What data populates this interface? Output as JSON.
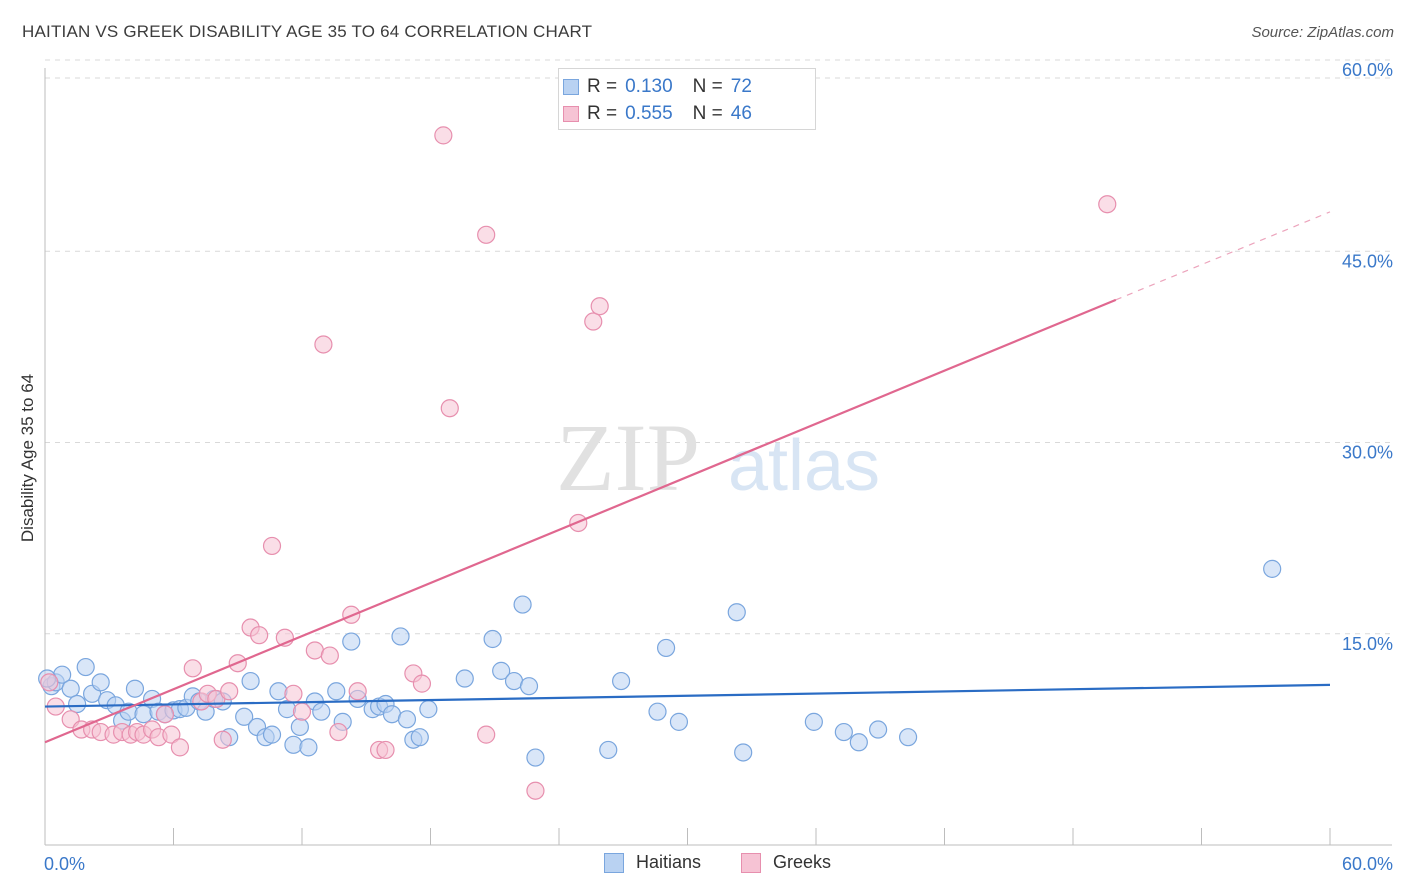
{
  "header": {
    "title": "HAITIAN VS GREEK DISABILITY AGE 35 TO 64 CORRELATION CHART",
    "source": "Source: ZipAtlas.com"
  },
  "watermark": {
    "zip": "ZIP",
    "atlas": "atlas"
  },
  "colors": {
    "haitian_fill": "#b9d2f2",
    "haitian_stroke": "#7aa6de",
    "haitian_line": "#2a6cc4",
    "greek_fill": "#f6c3d4",
    "greek_stroke": "#e78fae",
    "greek_line": "#e0678f",
    "tick_label": "#3a78c9",
    "grid": "#d9d9d9"
  },
  "legend_top": {
    "rows": [
      {
        "swatch": "haitian",
        "r_label": "R =",
        "r_value": "0.130",
        "n_label": "N =",
        "n_value": "72"
      },
      {
        "swatch": "greek",
        "r_label": "R =",
        "r_value": "0.555",
        "n_label": "N =",
        "n_value": "46"
      }
    ]
  },
  "legend_bottom": [
    {
      "swatch": "haitian",
      "label": "Haitians"
    },
    {
      "swatch": "greek",
      "label": "Greeks"
    }
  ],
  "chart_data": {
    "type": "scatter",
    "title": "HAITIAN VS GREEK DISABILITY AGE 35 TO 64 CORRELATION CHART",
    "xlabel": "",
    "ylabel": "Disability Age 35 to 64",
    "xlim": [
      0,
      60
    ],
    "ylim": [
      0,
      60
    ],
    "x_tick_labels": [
      {
        "value": 0,
        "label": "0.0%"
      },
      {
        "value": 60,
        "label": "60.0%"
      }
    ],
    "y_tick_labels": [
      {
        "value": 15,
        "label": "15.0%"
      },
      {
        "value": 30,
        "label": "30.0%"
      },
      {
        "value": 45,
        "label": "45.0%"
      },
      {
        "value": 60,
        "label": "60.0%"
      }
    ],
    "grid": "horizontal dashed",
    "legend_placement": "top-center",
    "series": [
      {
        "name": "Haitians",
        "r": 0.13,
        "n": 72,
        "trend": {
          "x": [
            0,
            60
          ],
          "y": [
            10.7,
            12.4
          ]
        },
        "points": [
          [
            0.3,
            12.3
          ],
          [
            0.5,
            12.6
          ],
          [
            0.8,
            13.2
          ],
          [
            1.2,
            12.1
          ],
          [
            1.5,
            10.9
          ],
          [
            1.9,
            13.8
          ],
          [
            2.2,
            11.7
          ],
          [
            2.6,
            12.6
          ],
          [
            2.9,
            11.2
          ],
          [
            3.3,
            10.8
          ],
          [
            3.6,
            9.6
          ],
          [
            3.9,
            10.3
          ],
          [
            4.2,
            12.1
          ],
          [
            4.6,
            10.1
          ],
          [
            5.0,
            11.3
          ],
          [
            5.3,
            10.3
          ],
          [
            5.6,
            10.1
          ],
          [
            6.0,
            10.4
          ],
          [
            6.3,
            10.5
          ],
          [
            6.6,
            10.6
          ],
          [
            6.9,
            11.5
          ],
          [
            7.2,
            11.1
          ],
          [
            7.5,
            10.3
          ],
          [
            7.9,
            11.3
          ],
          [
            8.3,
            11.1
          ],
          [
            8.6,
            8.3
          ],
          [
            9.3,
            9.9
          ],
          [
            9.6,
            12.7
          ],
          [
            9.9,
            9.1
          ],
          [
            10.3,
            8.3
          ],
          [
            10.6,
            8.5
          ],
          [
            10.9,
            11.9
          ],
          [
            11.3,
            10.5
          ],
          [
            11.6,
            7.7
          ],
          [
            11.9,
            9.1
          ],
          [
            12.3,
            7.5
          ],
          [
            12.6,
            11.1
          ],
          [
            12.9,
            10.3
          ],
          [
            13.6,
            11.9
          ],
          [
            13.9,
            9.5
          ],
          [
            14.3,
            15.8
          ],
          [
            14.6,
            11.3
          ],
          [
            15.3,
            10.5
          ],
          [
            15.6,
            10.7
          ],
          [
            15.9,
            10.9
          ],
          [
            16.2,
            10.1
          ],
          [
            16.6,
            16.2
          ],
          [
            16.9,
            9.7
          ],
          [
            17.2,
            8.1
          ],
          [
            17.5,
            8.3
          ],
          [
            17.9,
            10.5
          ],
          [
            19.6,
            12.9
          ],
          [
            20.9,
            16.0
          ],
          [
            21.3,
            13.5
          ],
          [
            21.9,
            12.7
          ],
          [
            22.3,
            18.7
          ],
          [
            22.6,
            12.3
          ],
          [
            22.9,
            6.7
          ],
          [
            26.3,
            7.3
          ],
          [
            26.9,
            12.7
          ],
          [
            28.6,
            10.3
          ],
          [
            29.0,
            15.3
          ],
          [
            29.6,
            9.5
          ],
          [
            32.6,
            7.1
          ],
          [
            32.3,
            18.1
          ],
          [
            35.9,
            9.5
          ],
          [
            37.3,
            8.7
          ],
          [
            38.0,
            7.9
          ],
          [
            38.9,
            8.9
          ],
          [
            40.3,
            8.3
          ],
          [
            57.3,
            21.5
          ],
          [
            0.1,
            12.9
          ]
        ]
      },
      {
        "name": "Greeks",
        "r": 0.555,
        "n": 46,
        "trend": {
          "x": [
            0,
            50
          ],
          "y": [
            7.9,
            42.6
          ]
        },
        "trend_extension": {
          "x": [
            50,
            60
          ],
          "y": [
            42.6,
            49.5
          ]
        },
        "points": [
          [
            0.2,
            12.6
          ],
          [
            0.5,
            10.7
          ],
          [
            1.2,
            9.7
          ],
          [
            1.7,
            8.9
          ],
          [
            2.2,
            8.9
          ],
          [
            2.6,
            8.7
          ],
          [
            3.2,
            8.5
          ],
          [
            3.6,
            8.7
          ],
          [
            4.0,
            8.5
          ],
          [
            4.3,
            8.7
          ],
          [
            4.6,
            8.5
          ],
          [
            5.0,
            8.9
          ],
          [
            5.3,
            8.3
          ],
          [
            5.6,
            10.1
          ],
          [
            5.9,
            8.5
          ],
          [
            6.3,
            7.5
          ],
          [
            6.9,
            13.7
          ],
          [
            7.3,
            11.1
          ],
          [
            7.6,
            11.7
          ],
          [
            8.0,
            11.3
          ],
          [
            8.3,
            8.1
          ],
          [
            8.6,
            11.9
          ],
          [
            9.0,
            14.1
          ],
          [
            9.6,
            16.9
          ],
          [
            10.0,
            16.3
          ],
          [
            10.6,
            23.3
          ],
          [
            11.2,
            16.1
          ],
          [
            11.6,
            11.7
          ],
          [
            12.0,
            10.3
          ],
          [
            12.6,
            15.1
          ],
          [
            13.0,
            39.1
          ],
          [
            13.3,
            14.7
          ],
          [
            13.7,
            8.7
          ],
          [
            14.3,
            17.9
          ],
          [
            14.6,
            11.9
          ],
          [
            15.6,
            7.3
          ],
          [
            15.9,
            7.3
          ],
          [
            17.2,
            13.3
          ],
          [
            17.6,
            12.5
          ],
          [
            18.9,
            34.1
          ],
          [
            20.6,
            8.5
          ],
          [
            22.9,
            4.1
          ],
          [
            24.9,
            25.1
          ],
          [
            25.6,
            40.9
          ],
          [
            25.9,
            42.1
          ],
          [
            49.6,
            50.1
          ]
        ],
        "outliers_high": [
          [
            18.6,
            55.5
          ],
          [
            20.6,
            47.7
          ]
        ]
      }
    ]
  }
}
